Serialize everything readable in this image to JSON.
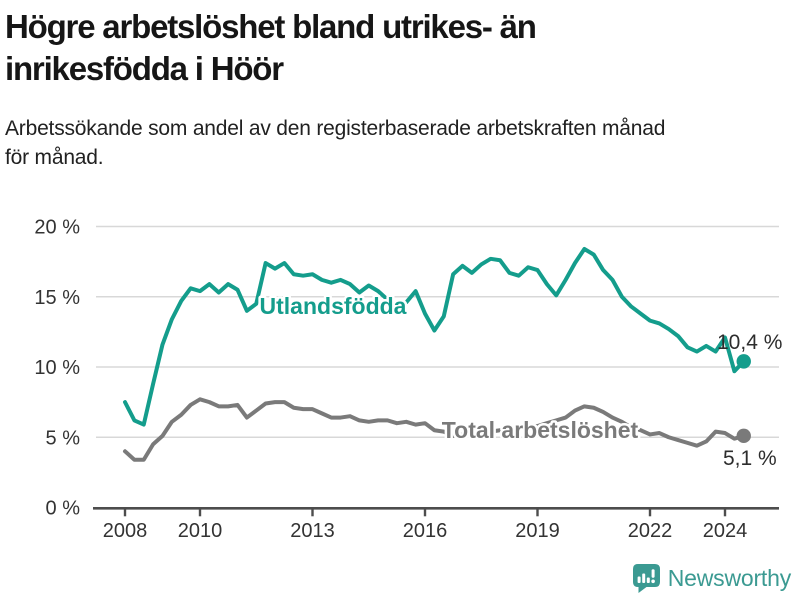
{
  "header": {
    "title_lines": [
      "Högre arbetslöshet bland utrikes- än",
      "inrikesfödda i Höör"
    ],
    "subtitle_lines": [
      "Arbetssökande som andel av den registerbaserade arbetskraften månad",
      "för månad."
    ]
  },
  "footer": {
    "brand": "Newsworthy",
    "logo_icon": "newsworthy-chart-bubble-icon"
  },
  "colors": {
    "utlandsfodda_line": "#149d8c",
    "total_line": "#7a7a7a",
    "gridline": "#d8d8d8",
    "axis": "#4d4d4d",
    "axis_text": "#333333",
    "end_label_text": "#2d2d2d",
    "title_text": "#161616",
    "logo_teal": "#3b9a92"
  },
  "chart_data": {
    "type": "line",
    "title": "Högre arbetslöshet bland utrikes- än inrikesfödda i Höör",
    "subtitle": "Arbetssökande som andel av den registerbaserade arbetskraften månad för månad.",
    "ylabel": "",
    "xlabel": "",
    "ylim": [
      0,
      20
    ],
    "xlim": [
      2007.2,
      2025.4
    ],
    "grid": true,
    "legend_position": "inline-labels",
    "y_ticks": [
      {
        "value": 0,
        "label": "0 %"
      },
      {
        "value": 5,
        "label": "5 %"
      },
      {
        "value": 10,
        "label": "10 %"
      },
      {
        "value": 15,
        "label": "15 %"
      },
      {
        "value": 20,
        "label": "20 %"
      }
    ],
    "x_ticks": [
      {
        "value": 2008,
        "label": "2008"
      },
      {
        "value": 2010,
        "label": "2010"
      },
      {
        "value": 2013,
        "label": "2013"
      },
      {
        "value": 2016,
        "label": "2016"
      },
      {
        "value": 2019,
        "label": "2019"
      },
      {
        "value": 2022,
        "label": "2022"
      },
      {
        "value": 2024,
        "label": "2024"
      }
    ],
    "x": [
      2008,
      2008.25,
      2008.5,
      2008.75,
      2009,
      2009.25,
      2009.5,
      2009.75,
      2010,
      2010.25,
      2010.5,
      2010.75,
      2011,
      2011.25,
      2011.5,
      2011.75,
      2012,
      2012.25,
      2012.5,
      2012.75,
      2013,
      2013.25,
      2013.5,
      2013.75,
      2014,
      2014.25,
      2014.5,
      2014.75,
      2015,
      2015.25,
      2015.5,
      2015.75,
      2016,
      2016.25,
      2016.5,
      2016.75,
      2017,
      2017.25,
      2017.5,
      2017.75,
      2018,
      2018.25,
      2018.5,
      2018.75,
      2019,
      2019.25,
      2019.5,
      2019.75,
      2020,
      2020.25,
      2020.5,
      2020.75,
      2021,
      2021.25,
      2021.5,
      2021.75,
      2022,
      2022.25,
      2022.5,
      2022.75,
      2023,
      2023.25,
      2023.5,
      2023.75,
      2024,
      2024.25,
      2024.5
    ],
    "series": [
      {
        "name": "Utlandsfödda",
        "color": "#149d8c",
        "end_value": 10.4,
        "end_label": "10,4 %",
        "values": [
          7.5,
          6.2,
          5.9,
          8.8,
          11.6,
          13.4,
          14.7,
          15.6,
          15.4,
          15.9,
          15.3,
          15.9,
          15.5,
          14.0,
          14.5,
          17.4,
          17.0,
          17.4,
          16.6,
          16.5,
          16.6,
          16.2,
          16.0,
          16.2,
          15.9,
          15.3,
          15.8,
          15.4,
          14.8,
          14.4,
          14.6,
          15.4,
          13.8,
          12.6,
          13.6,
          16.6,
          17.2,
          16.7,
          17.3,
          17.7,
          17.6,
          16.7,
          16.5,
          17.1,
          16.9,
          15.9,
          15.1,
          16.2,
          17.4,
          18.4,
          18.0,
          16.9,
          16.2,
          15.0,
          14.3,
          13.8,
          13.3,
          13.1,
          12.7,
          12.2,
          11.4,
          11.1,
          11.5,
          11.1,
          12.1,
          9.7,
          10.4
        ]
      },
      {
        "name": "Total arbetslöshet",
        "color": "#7a7a7a",
        "end_value": 5.1,
        "end_label": "5,1 %",
        "values": [
          4.0,
          3.4,
          3.4,
          4.5,
          5.1,
          6.1,
          6.6,
          7.3,
          7.7,
          7.5,
          7.2,
          7.2,
          7.3,
          6.4,
          6.9,
          7.4,
          7.5,
          7.5,
          7.1,
          7.0,
          7.0,
          6.7,
          6.4,
          6.4,
          6.5,
          6.2,
          6.1,
          6.2,
          6.2,
          6.0,
          6.1,
          5.9,
          6.0,
          5.5,
          5.4,
          5.1,
          5.2,
          5.3,
          5.3,
          5.4,
          5.5,
          5.6,
          5.6,
          5.7,
          5.8,
          6.0,
          6.2,
          6.4,
          6.9,
          7.2,
          7.1,
          6.8,
          6.4,
          6.1,
          5.7,
          5.5,
          5.2,
          5.3,
          5.0,
          4.8,
          4.6,
          4.4,
          4.7,
          5.4,
          5.3,
          4.9,
          5.1
        ]
      }
    ]
  }
}
